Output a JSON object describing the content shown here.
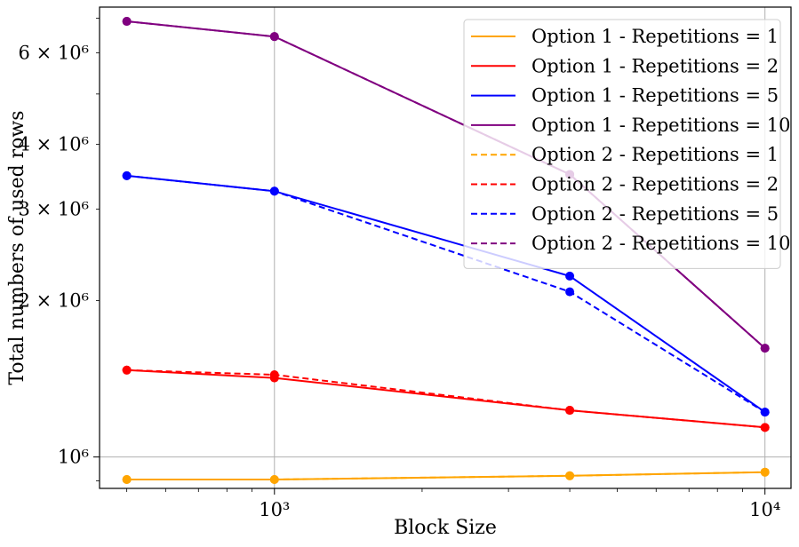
{
  "chart_data": {
    "type": "line",
    "xlabel": "Block Size",
    "ylabel": "Total numbers of used rows",
    "xscale": "log",
    "yscale": "log",
    "xlim": [
      440,
      11300
    ],
    "ylim": [
      870000,
      7350000
    ],
    "x": [
      500,
      1000,
      4000,
      10000
    ],
    "x_ticks": [
      {
        "value": 1000,
        "label": "10³"
      },
      {
        "value": 10000,
        "label": "10⁴"
      }
    ],
    "y_ticks": [
      {
        "value": 1000000,
        "label": "10⁶"
      },
      {
        "value": 2000000,
        "label": "2 × 10⁶"
      },
      {
        "value": 3000000,
        "label": "3 × 10⁶"
      },
      {
        "value": 4000000,
        "label": "4 × 10⁶"
      },
      {
        "value": 6000000,
        "label": "6 × 10⁶"
      }
    ],
    "grid": "major ticks only",
    "legend_position": "top-right",
    "series": [
      {
        "name": "Option 1 - Repetitions = 1",
        "color": "#ffa500",
        "dash": "solid",
        "values": [
          905000,
          905000,
          920000,
          935000
        ]
      },
      {
        "name": "Option 1 - Repetitions = 2",
        "color": "#ff0000",
        "dash": "solid",
        "values": [
          1470000,
          1420000,
          1230000,
          1140000
        ]
      },
      {
        "name": "Option 1 - Repetitions = 5",
        "color": "#0000ff",
        "dash": "solid",
        "values": [
          3480000,
          3250000,
          2230000,
          1220000
        ]
      },
      {
        "name": "Option 1 - Repetitions = 10",
        "color": "#800080",
        "dash": "solid",
        "values": [
          6900000,
          6450000,
          3500000,
          1620000
        ]
      },
      {
        "name": "Option 2 - Repetitions = 1",
        "color": "#ffa500",
        "dash": "dashed",
        "values": [
          905000,
          905000,
          920000,
          935000
        ]
      },
      {
        "name": "Option 2 - Repetitions = 2",
        "color": "#ff0000",
        "dash": "dashed",
        "values": [
          1470000,
          1440000,
          1230000,
          1140000
        ]
      },
      {
        "name": "Option 2 - Repetitions = 5",
        "color": "#0000ff",
        "dash": "dashed",
        "values": [
          3480000,
          3250000,
          2080000,
          1220000
        ]
      },
      {
        "name": "Option 2 - Repetitions = 10",
        "color": "#800080",
        "dash": "dashed",
        "values": [
          6900000,
          6450000,
          3500000,
          1620000
        ]
      }
    ]
  }
}
